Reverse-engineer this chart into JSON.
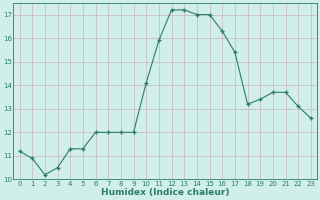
{
  "x": [
    0,
    1,
    2,
    3,
    4,
    5,
    6,
    7,
    8,
    9,
    10,
    11,
    12,
    13,
    14,
    15,
    16,
    17,
    18,
    19,
    20,
    21,
    22,
    23
  ],
  "y": [
    11.2,
    10.9,
    10.2,
    10.5,
    11.3,
    11.3,
    12.0,
    12.0,
    12.0,
    12.0,
    14.1,
    15.9,
    17.2,
    17.2,
    17.0,
    17.0,
    16.3,
    15.4,
    13.2,
    13.4,
    13.7,
    13.7,
    13.1,
    12.6
  ],
  "xlabel": "Humidex (Indice chaleur)",
  "ylim": [
    10,
    17.5
  ],
  "xlim": [
    -0.5,
    23.5
  ],
  "yticks": [
    10,
    11,
    12,
    13,
    14,
    15,
    16,
    17
  ],
  "xticks": [
    0,
    1,
    2,
    3,
    4,
    5,
    6,
    7,
    8,
    9,
    10,
    11,
    12,
    13,
    14,
    15,
    16,
    17,
    18,
    19,
    20,
    21,
    22,
    23
  ],
  "line_color": "#2d7c6e",
  "marker_color": "#2d7c6e",
  "bg_color": "#d0eeea",
  "plot_bg_color": "#d0eeea",
  "grid_color": "#c8b8b8",
  "xlabel_color": "#2d7c6e",
  "tick_color": "#2d7c6e",
  "spine_color": "#2d7c6e",
  "tick_fontsize": 5.0,
  "xlabel_fontsize": 6.5
}
